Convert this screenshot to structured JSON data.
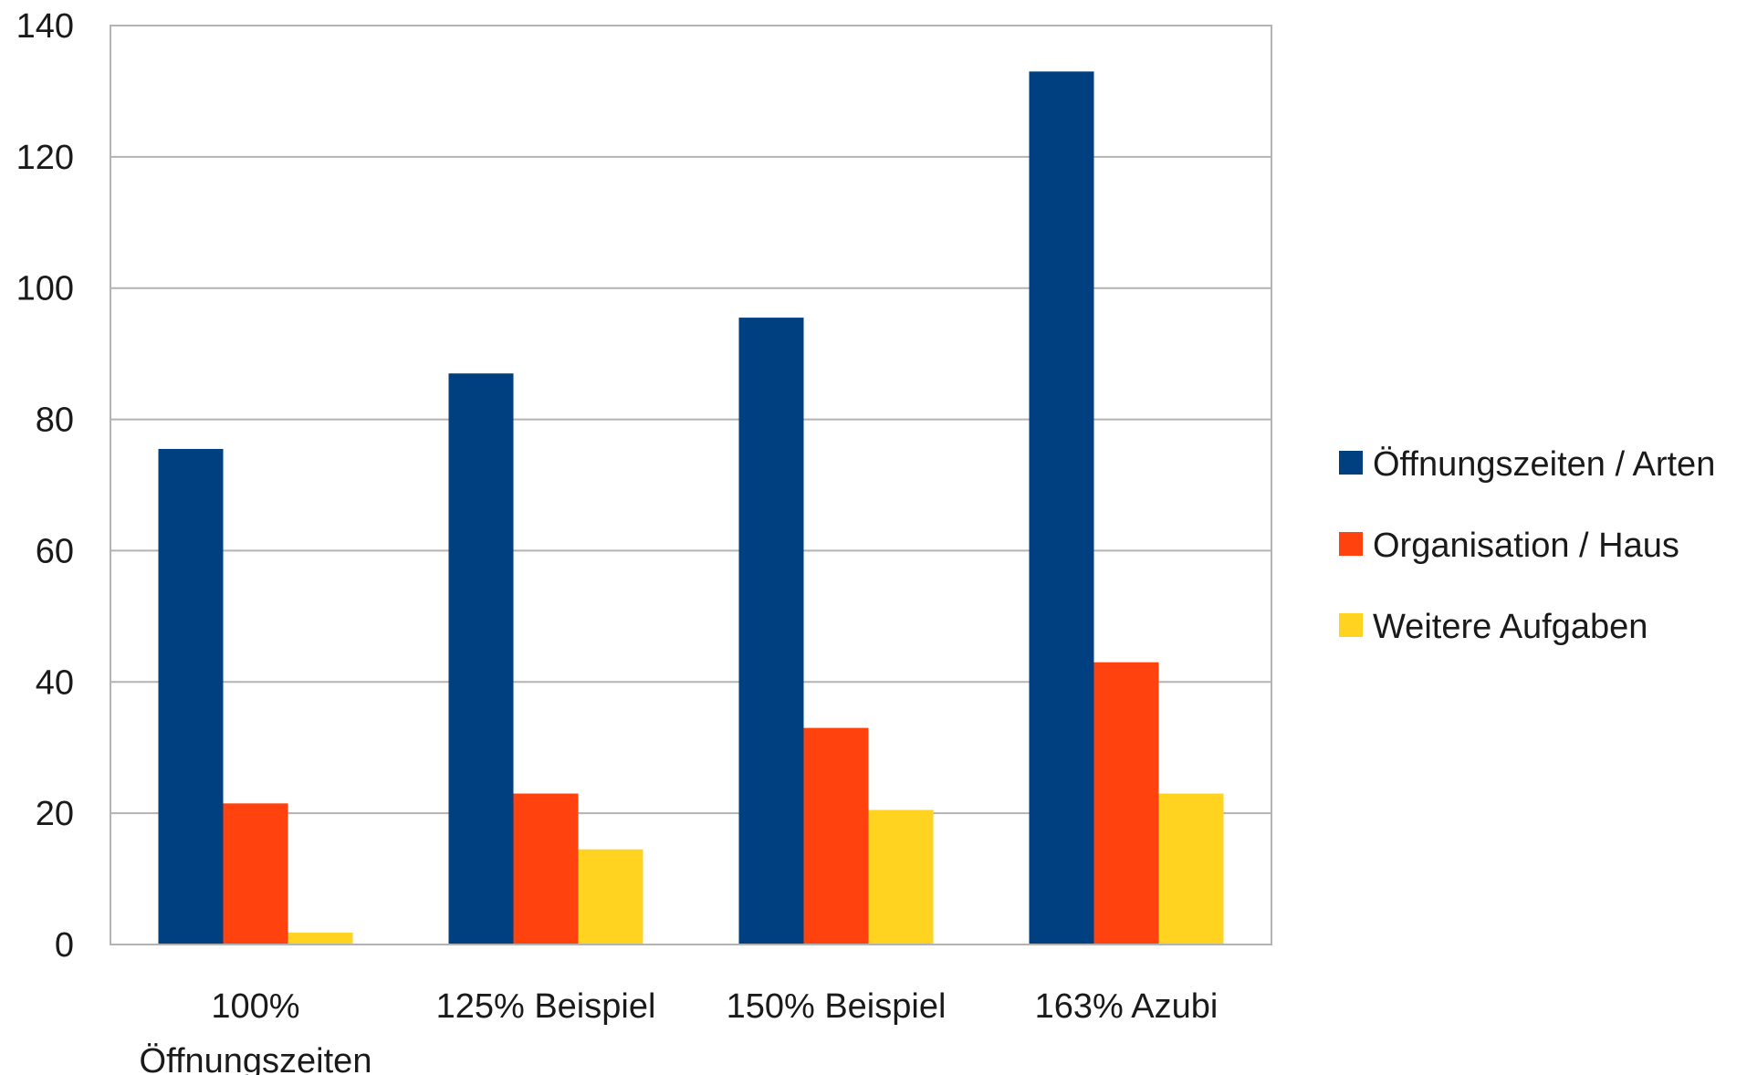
{
  "chart_data": {
    "type": "bar",
    "title": "",
    "xlabel": "",
    "ylabel": "",
    "categories": [
      [
        "100%",
        "Öffnungszeiten"
      ],
      [
        "125% Beispiel"
      ],
      [
        "150% Beispiel"
      ],
      [
        "163% Azubi"
      ]
    ],
    "series": [
      {
        "name": "Öffnungszeiten / Arten",
        "color": "#004080",
        "values": [
          75.5,
          87,
          95.5,
          133
        ]
      },
      {
        "name": "Organisation / Haus",
        "color": "#FF420E",
        "values": [
          21.5,
          23,
          33,
          43
        ]
      },
      {
        "name": "Weitere Aufgaben",
        "color": "#FFD320",
        "values": [
          1.8,
          14.5,
          20.5,
          23
        ]
      }
    ],
    "ylim": [
      0,
      140
    ],
    "yticks": [
      0,
      20,
      40,
      60,
      80,
      100,
      120,
      140
    ],
    "grid": true,
    "legend_position": "right"
  }
}
